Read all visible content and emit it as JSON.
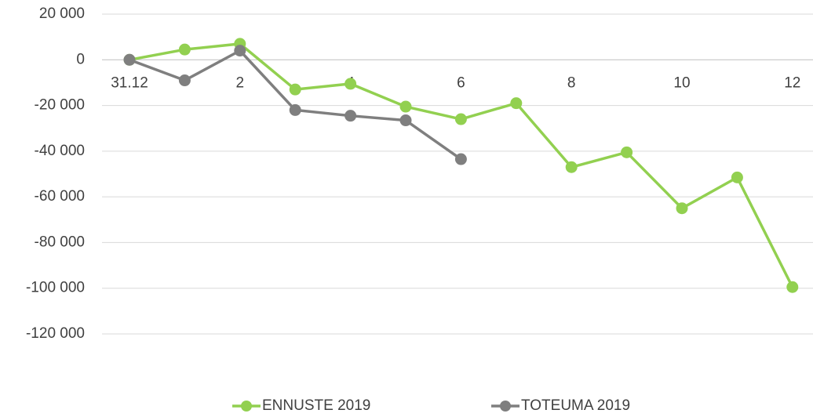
{
  "chart_data": {
    "type": "line",
    "categories": [
      "31.12",
      null,
      "2",
      null,
      "4",
      null,
      "6",
      null,
      "8",
      null,
      "10",
      null,
      "12"
    ],
    "series": [
      {
        "name": "ENNUSTE 2019",
        "color": "#92d050",
        "values": [
          0,
          4500,
          7000,
          -13000,
          -10500,
          -20500,
          -26000,
          -19000,
          -47000,
          -40500,
          -65000,
          -51500,
          -99500
        ]
      },
      {
        "name": "TOTEUMA 2019",
        "color": "#7f7f7f",
        "values": [
          0,
          -9000,
          4000,
          -22000,
          -24500,
          -26500,
          -43500,
          null,
          null,
          null,
          null,
          null,
          null
        ]
      }
    ],
    "ylim": [
      -120000,
      20000
    ],
    "yticks": [
      {
        "value": -120000,
        "label": "-120 000"
      },
      {
        "value": -100000,
        "label": "-100 000"
      },
      {
        "value": -80000,
        "label": "-80 000"
      },
      {
        "value": -60000,
        "label": "-60 000"
      },
      {
        "value": -40000,
        "label": "-40 000"
      },
      {
        "value": -20000,
        "label": "-20 000"
      },
      0,
      {
        "value": 20000,
        "label": "20 000"
      }
    ],
    "grid": true,
    "legend": "bottom"
  }
}
